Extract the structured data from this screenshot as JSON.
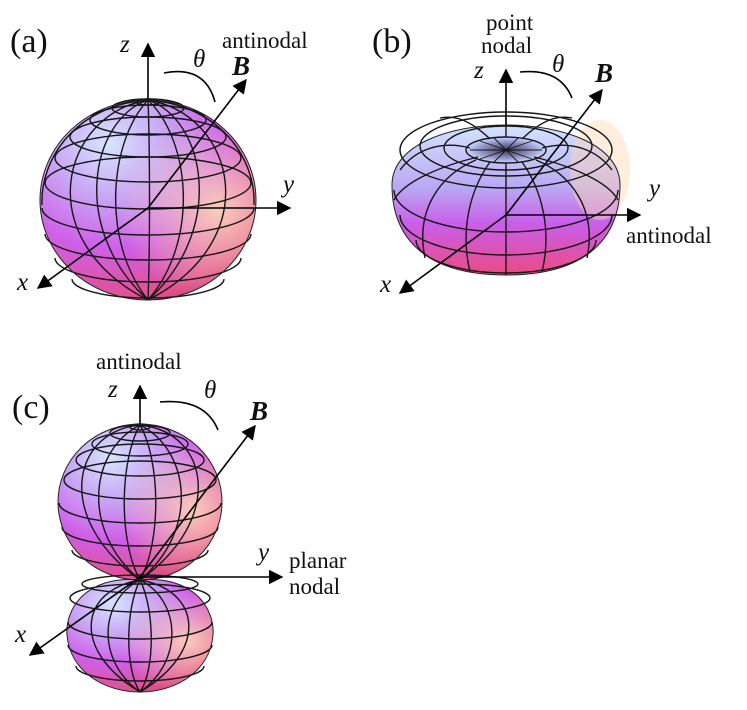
{
  "panels": [
    {
      "id": "a",
      "label": "(a)",
      "shape": "sphere",
      "notes": [
        "antinodal"
      ],
      "axes": {
        "x": "x",
        "y": "y",
        "z": "z"
      },
      "field": "B",
      "angle": "θ"
    },
    {
      "id": "b",
      "label": "(b)",
      "shape": "torus",
      "notes": [
        "point",
        "nodal",
        "antinodal"
      ],
      "axes": {
        "x": "x",
        "y": "y",
        "z": "z"
      },
      "field": "B",
      "angle": "θ"
    },
    {
      "id": "c",
      "label": "(c)",
      "shape": "double-lobe",
      "notes": [
        "antinodal",
        "planar",
        "nodal"
      ],
      "axes": {
        "x": "x",
        "y": "y",
        "z": "z"
      },
      "field": "B",
      "angle": "θ"
    }
  ],
  "colors": {
    "surface_top": "#c9dcff",
    "surface_mid": "#d86ae6",
    "surface_bottom": "#f04c82",
    "highlight": "#ffd2b0",
    "grid": "#151515"
  }
}
